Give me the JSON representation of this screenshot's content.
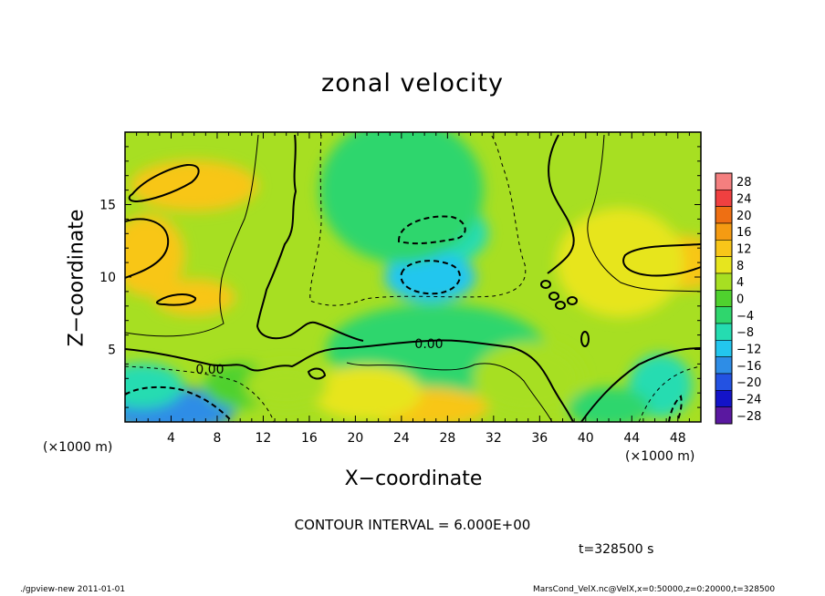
{
  "chart_data": {
    "type": "heatmap",
    "title": "zonal velocity",
    "xlabel": "X−coordinate",
    "ylabel": "Z−coordinate",
    "x_unit_label": "(×1000 m)",
    "xlim": [
      0,
      50
    ],
    "ylim": [
      0,
      20
    ],
    "x_ticks": [
      4,
      8,
      12,
      16,
      20,
      24,
      28,
      32,
      36,
      40,
      44,
      48
    ],
    "y_ticks": [
      5,
      10,
      15
    ],
    "contour_labels": [
      "0.00",
      "0.00"
    ],
    "colorbar": {
      "levels": [
        28,
        24,
        20,
        16,
        12,
        8,
        4,
        0,
        -4,
        -8,
        -12,
        -16,
        -20,
        -24,
        -28
      ],
      "label_texts": [
        "28",
        "24",
        "20",
        "16",
        "12",
        "8",
        "4",
        "0",
        "−4",
        "−8",
        "−12",
        "−16",
        "−20",
        "−24",
        "−28"
      ],
      "colors": [
        "#f47f7f",
        "#f04040",
        "#ee6f13",
        "#f59b12",
        "#f8c619",
        "#e7e51e",
        "#a7df22",
        "#4fd12e",
        "#2fd66d",
        "#25dcb1",
        "#23c6ee",
        "#2e8de6",
        "#2352e2",
        "#1313c8",
        "#5a18a0"
      ]
    },
    "field_blobs": [
      {
        "x": 6,
        "y": 16.3,
        "value": 12
      },
      {
        "x": 2,
        "y": 11.5,
        "value": 13
      },
      {
        "x": 6,
        "y": 8.6,
        "value": 10
      },
      {
        "x": 26,
        "y": 13.0,
        "value": -8
      },
      {
        "x": 26.5,
        "y": 10.0,
        "value": -13
      },
      {
        "x": 24,
        "y": 16.0,
        "value": -5
      },
      {
        "x": 27,
        "y": 5.0,
        "value": -3
      },
      {
        "x": 48,
        "y": 11.0,
        "value": 12
      },
      {
        "x": 43,
        "y": 11.0,
        "value": 8
      },
      {
        "x": 4,
        "y": 0.8,
        "value": -18
      },
      {
        "x": 1.5,
        "y": 2.5,
        "value": -9
      },
      {
        "x": 26,
        "y": 1.0,
        "value": 13
      },
      {
        "x": 21,
        "y": 2.0,
        "value": 8
      },
      {
        "x": 46.5,
        "y": 2.5,
        "value": -10
      },
      {
        "x": 42,
        "y": 1.0,
        "value": -6
      },
      {
        "x": 35,
        "y": 3.0,
        "value": 2
      },
      {
        "x": 10,
        "y": 2.5,
        "value": 0
      },
      {
        "x": 14,
        "y": 2.5,
        "value": 5
      }
    ],
    "background_value": 5
  },
  "contour_interval": "CONTOUR INTERVAL = 6.000E+00",
  "time_label": "t=328500 s",
  "footer_left": "./gpview-new   2011-01-01",
  "footer_right": "MarsCond_VelX.nc@VelX,x=0:50000,z=0:20000,t=328500"
}
